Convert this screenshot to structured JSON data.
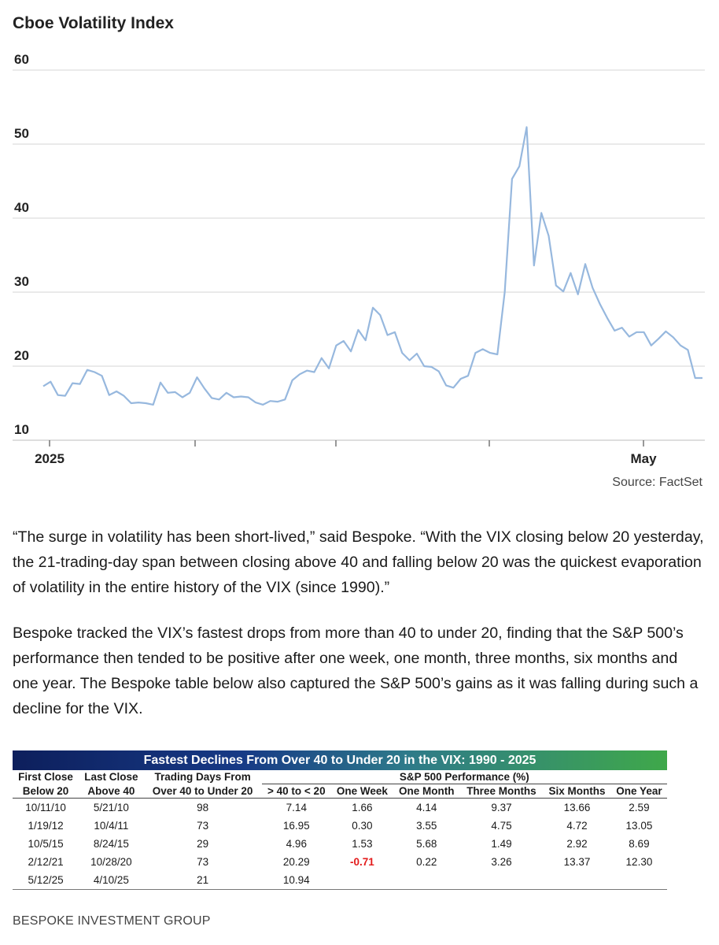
{
  "chart_data": {
    "type": "line",
    "title": "Cboe Volatility Index",
    "xlabel": "",
    "ylabel": "",
    "ylim": [
      10,
      60
    ],
    "yticks": [
      "60",
      "50",
      "40",
      "30",
      "20",
      "10"
    ],
    "xtick_labels": [
      "2025",
      "",
      "",
      "",
      "May"
    ],
    "grid": true,
    "series": [
      {
        "values": [
          17.3,
          17.9,
          16.1,
          16.0,
          17.7,
          17.6,
          19.5,
          19.2,
          18.7,
          16.1,
          16.6,
          16.0,
          15.0,
          15.1,
          15.0,
          14.8,
          17.8,
          16.4,
          16.5,
          15.8,
          16.4,
          18.5,
          17.0,
          15.7,
          15.5,
          16.4,
          15.8,
          15.9,
          15.8,
          15.1,
          14.8,
          15.3,
          15.2,
          15.5,
          18.1,
          18.9,
          19.4,
          19.2,
          21.1,
          19.7,
          22.8,
          23.4,
          22.0,
          24.9,
          23.5,
          27.9,
          26.9,
          24.2,
          24.6,
          21.8,
          20.8,
          21.7,
          20.0,
          19.9,
          19.3,
          17.4,
          17.1,
          18.3,
          18.7,
          21.8,
          22.3,
          21.8,
          21.6,
          30.0,
          45.3,
          47.0,
          52.3,
          33.6,
          40.7,
          37.6,
          30.9,
          30.1,
          32.6,
          29.7,
          33.8,
          30.6,
          28.4,
          26.5,
          24.8,
          25.2,
          24.0,
          24.6,
          24.6,
          22.8,
          23.7,
          24.7,
          23.9,
          22.8,
          22.2,
          18.4,
          18.4
        ]
      }
    ]
  },
  "source": "Source: FactSet",
  "paragraphs": [
    "“The surge in volatility has been short-lived,” said Bespoke. “With the VIX closing below 20 yesterday, the 21-trading-day span between closing above 40 and falling below 20 was the quickest evaporation of volatility in the entire history of the VIX (since 1990).”",
    "Bespoke tracked the VIX’s fastest drops from more than 40 to under 20, finding that the S&P 500’s performance then tended to be positive after one week, one month, three months, six months and one year. The Bespoke table below also captured the S&P 500’s gains as it was falling during such a decline for the VIX."
  ],
  "table": {
    "title": "Fastest Declines From Over 40 to Under 20 in the VIX: 1990 - 2025",
    "group_header": "S&P 500 Performance (%)",
    "headers_top": [
      "First Close",
      "Last Close",
      "Trading Days From"
    ],
    "headers_bottom": [
      "Below 20",
      "Above 40",
      "Over 40 to Under 20",
      "> 40 to < 20",
      "One Week",
      "One Month",
      "Three Months",
      "Six Months",
      "One Year"
    ],
    "rows": [
      [
        "10/11/10",
        "5/21/10",
        "98",
        "7.14",
        "1.66",
        "4.14",
        "9.37",
        "13.66",
        "2.59"
      ],
      [
        "1/19/12",
        "10/4/11",
        "73",
        "16.95",
        "0.30",
        "3.55",
        "4.75",
        "4.72",
        "13.05"
      ],
      [
        "10/5/15",
        "8/24/15",
        "29",
        "4.96",
        "1.53",
        "5.68",
        "1.49",
        "2.92",
        "8.69"
      ],
      [
        "2/12/21",
        "10/28/20",
        "73",
        "20.29",
        "-0.71",
        "0.22",
        "3.26",
        "13.37",
        "12.30"
      ],
      [
        "5/12/25",
        "4/10/25",
        "21",
        "10.94",
        "",
        "",
        "",
        "",
        ""
      ]
    ],
    "negative_color": "#e31b1b"
  },
  "credit": "BESPOKE INVESTMENT GROUP",
  "colors": {
    "line": "#97b8de",
    "grid": "#d6d6d6",
    "banner_start": "#0d1f5c",
    "banner_end": "#3fa84a"
  }
}
